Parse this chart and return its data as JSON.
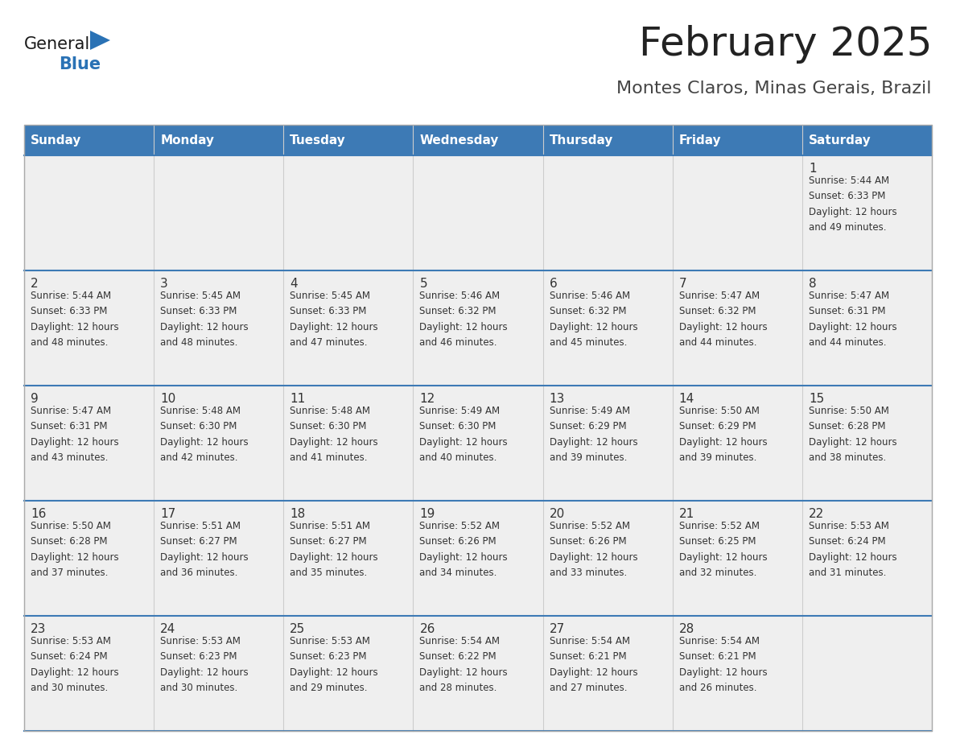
{
  "title": "February 2025",
  "subtitle": "Montes Claros, Minas Gerais, Brazil",
  "days_of_week": [
    "Sunday",
    "Monday",
    "Tuesday",
    "Wednesday",
    "Thursday",
    "Friday",
    "Saturday"
  ],
  "header_bg": "#3D7AB5",
  "header_text": "#FFFFFF",
  "cell_bg": "#EFEFEF",
  "cell_border_color": "#3D7AB5",
  "outer_border_color": "#AAAAAA",
  "day_num_color": "#333333",
  "info_color": "#333333",
  "title_color": "#222222",
  "subtitle_color": "#444444",
  "logo_general_color": "#1A1A1A",
  "logo_blue_color": "#2A72B5",
  "calendar_data": [
    {
      "day": 1,
      "col": 6,
      "row": 0,
      "sunrise": "5:44 AM",
      "sunset": "6:33 PM",
      "daylight": "12 hours and 49 minutes"
    },
    {
      "day": 2,
      "col": 0,
      "row": 1,
      "sunrise": "5:44 AM",
      "sunset": "6:33 PM",
      "daylight": "12 hours and 48 minutes"
    },
    {
      "day": 3,
      "col": 1,
      "row": 1,
      "sunrise": "5:45 AM",
      "sunset": "6:33 PM",
      "daylight": "12 hours and 48 minutes"
    },
    {
      "day": 4,
      "col": 2,
      "row": 1,
      "sunrise": "5:45 AM",
      "sunset": "6:33 PM",
      "daylight": "12 hours and 47 minutes"
    },
    {
      "day": 5,
      "col": 3,
      "row": 1,
      "sunrise": "5:46 AM",
      "sunset": "6:32 PM",
      "daylight": "12 hours and 46 minutes"
    },
    {
      "day": 6,
      "col": 4,
      "row": 1,
      "sunrise": "5:46 AM",
      "sunset": "6:32 PM",
      "daylight": "12 hours and 45 minutes"
    },
    {
      "day": 7,
      "col": 5,
      "row": 1,
      "sunrise": "5:47 AM",
      "sunset": "6:32 PM",
      "daylight": "12 hours and 44 minutes"
    },
    {
      "day": 8,
      "col": 6,
      "row": 1,
      "sunrise": "5:47 AM",
      "sunset": "6:31 PM",
      "daylight": "12 hours and 44 minutes"
    },
    {
      "day": 9,
      "col": 0,
      "row": 2,
      "sunrise": "5:47 AM",
      "sunset": "6:31 PM",
      "daylight": "12 hours and 43 minutes"
    },
    {
      "day": 10,
      "col": 1,
      "row": 2,
      "sunrise": "5:48 AM",
      "sunset": "6:30 PM",
      "daylight": "12 hours and 42 minutes"
    },
    {
      "day": 11,
      "col": 2,
      "row": 2,
      "sunrise": "5:48 AM",
      "sunset": "6:30 PM",
      "daylight": "12 hours and 41 minutes"
    },
    {
      "day": 12,
      "col": 3,
      "row": 2,
      "sunrise": "5:49 AM",
      "sunset": "6:30 PM",
      "daylight": "12 hours and 40 minutes"
    },
    {
      "day": 13,
      "col": 4,
      "row": 2,
      "sunrise": "5:49 AM",
      "sunset": "6:29 PM",
      "daylight": "12 hours and 39 minutes"
    },
    {
      "day": 14,
      "col": 5,
      "row": 2,
      "sunrise": "5:50 AM",
      "sunset": "6:29 PM",
      "daylight": "12 hours and 39 minutes"
    },
    {
      "day": 15,
      "col": 6,
      "row": 2,
      "sunrise": "5:50 AM",
      "sunset": "6:28 PM",
      "daylight": "12 hours and 38 minutes"
    },
    {
      "day": 16,
      "col": 0,
      "row": 3,
      "sunrise": "5:50 AM",
      "sunset": "6:28 PM",
      "daylight": "12 hours and 37 minutes"
    },
    {
      "day": 17,
      "col": 1,
      "row": 3,
      "sunrise": "5:51 AM",
      "sunset": "6:27 PM",
      "daylight": "12 hours and 36 minutes"
    },
    {
      "day": 18,
      "col": 2,
      "row": 3,
      "sunrise": "5:51 AM",
      "sunset": "6:27 PM",
      "daylight": "12 hours and 35 minutes"
    },
    {
      "day": 19,
      "col": 3,
      "row": 3,
      "sunrise": "5:52 AM",
      "sunset": "6:26 PM",
      "daylight": "12 hours and 34 minutes"
    },
    {
      "day": 20,
      "col": 4,
      "row": 3,
      "sunrise": "5:52 AM",
      "sunset": "6:26 PM",
      "daylight": "12 hours and 33 minutes"
    },
    {
      "day": 21,
      "col": 5,
      "row": 3,
      "sunrise": "5:52 AM",
      "sunset": "6:25 PM",
      "daylight": "12 hours and 32 minutes"
    },
    {
      "day": 22,
      "col": 6,
      "row": 3,
      "sunrise": "5:53 AM",
      "sunset": "6:24 PM",
      "daylight": "12 hours and 31 minutes"
    },
    {
      "day": 23,
      "col": 0,
      "row": 4,
      "sunrise": "5:53 AM",
      "sunset": "6:24 PM",
      "daylight": "12 hours and 30 minutes"
    },
    {
      "day": 24,
      "col": 1,
      "row": 4,
      "sunrise": "5:53 AM",
      "sunset": "6:23 PM",
      "daylight": "12 hours and 30 minutes"
    },
    {
      "day": 25,
      "col": 2,
      "row": 4,
      "sunrise": "5:53 AM",
      "sunset": "6:23 PM",
      "daylight": "12 hours and 29 minutes"
    },
    {
      "day": 26,
      "col": 3,
      "row": 4,
      "sunrise": "5:54 AM",
      "sunset": "6:22 PM",
      "daylight": "12 hours and 28 minutes"
    },
    {
      "day": 27,
      "col": 4,
      "row": 4,
      "sunrise": "5:54 AM",
      "sunset": "6:21 PM",
      "daylight": "12 hours and 27 minutes"
    },
    {
      "day": 28,
      "col": 5,
      "row": 4,
      "sunrise": "5:54 AM",
      "sunset": "6:21 PM",
      "daylight": "12 hours and 26 minutes"
    }
  ]
}
